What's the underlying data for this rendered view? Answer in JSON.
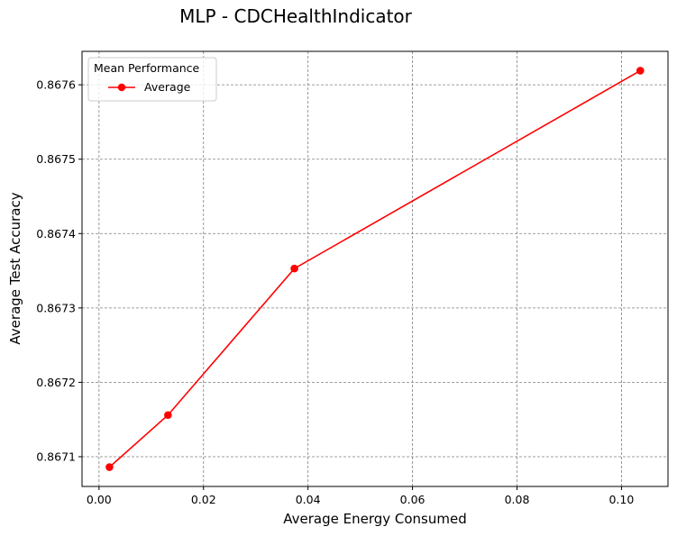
{
  "chart_data": {
    "type": "line",
    "title": "MLP - CDCHealthIndicator",
    "xlabel": "Average Energy Consumed",
    "ylabel": "Average Test Accuracy",
    "xlim": [
      -0.00325,
      0.1089
    ],
    "ylim": [
      0.86706,
      0.867645
    ],
    "xticks": [
      0.0,
      0.02,
      0.04,
      0.06,
      0.08,
      0.1
    ],
    "xtick_labels": [
      "0.00",
      "0.02",
      "0.04",
      "0.06",
      "0.08",
      "0.10"
    ],
    "yticks": [
      0.8671,
      0.8672,
      0.8673,
      0.8674,
      0.8675,
      0.8676
    ],
    "ytick_labels": [
      "0.8671",
      "0.8672",
      "0.8673",
      "0.8674",
      "0.8675",
      "0.8676"
    ],
    "grid": true,
    "legend": {
      "title": "Mean Performance",
      "placement": "upper-left"
    },
    "series": [
      {
        "name": "Average",
        "color": "#ff0000",
        "marker": "circle",
        "x": [
          0.002,
          0.0132,
          0.0374,
          0.1036
        ],
        "y": [
          0.867086,
          0.867156,
          0.867353,
          0.867619
        ]
      }
    ]
  }
}
